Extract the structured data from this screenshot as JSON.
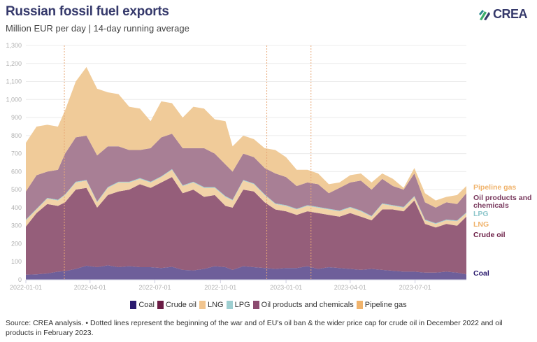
{
  "title": "Russian fossil fuel exports",
  "subtitle": "Million EUR per day | 14-day running average",
  "logo": {
    "text": "CREA",
    "icon": "crea-leaf-icon"
  },
  "source": "Source: CREA analysis. • Dotted lines represent the beginning of the war and of EU's oil ban & the wider price cap for crude oil in December 2022 and oil products in February 2023.",
  "chart_data": {
    "type": "area",
    "stacked": true,
    "title": "Russian fossil fuel exports",
    "ylabel": "Million EUR per day",
    "ylim": [
      0,
      1300
    ],
    "y_ticks": [
      0,
      100,
      200,
      300,
      400,
      500,
      600,
      700,
      800,
      900,
      1000,
      1100,
      1200,
      1300
    ],
    "x_range": [
      "2022-01-01",
      "2023-09-11"
    ],
    "x_ticks": [
      "2022-01-01",
      "2022-04-01",
      "2022-07-01",
      "2022-10-01",
      "2023-01-01",
      "2023-04-01",
      "2023-07-01"
    ],
    "grid": true,
    "legend_position": "bottom",
    "event_lines": [
      "2022-02-24",
      "2022-12-05",
      "2023-02-05"
    ],
    "x": [
      "2022-01-01",
      "2022-01-16",
      "2022-01-31",
      "2022-02-15",
      "2022-02-25",
      "2022-03-12",
      "2022-03-27",
      "2022-04-11",
      "2022-04-26",
      "2022-05-11",
      "2022-05-26",
      "2022-06-10",
      "2022-06-25",
      "2022-07-10",
      "2022-07-25",
      "2022-08-09",
      "2022-08-24",
      "2022-09-08",
      "2022-09-23",
      "2022-10-08",
      "2022-10-18",
      "2022-11-02",
      "2022-11-17",
      "2022-12-02",
      "2022-12-17",
      "2023-01-01",
      "2023-01-16",
      "2023-01-31",
      "2023-02-15",
      "2023-03-02",
      "2023-03-17",
      "2023-04-01",
      "2023-04-16",
      "2023-05-01",
      "2023-05-16",
      "2023-05-31",
      "2023-06-15",
      "2023-06-30",
      "2023-07-15",
      "2023-07-30",
      "2023-08-14",
      "2023-08-29",
      "2023-09-11"
    ],
    "series": [
      {
        "name": "Coal",
        "label": "Coal",
        "color": "#6e5f9a",
        "legend_color": "#2a1a6e",
        "label_color": "#2a1a6e",
        "values": [
          28,
          30,
          35,
          45,
          48,
          60,
          78,
          70,
          80,
          70,
          75,
          70,
          70,
          65,
          72,
          55,
          52,
          60,
          75,
          70,
          55,
          75,
          70,
          65,
          60,
          65,
          65,
          75,
          60,
          70,
          65,
          60,
          55,
          60,
          55,
          50,
          45,
          45,
          40,
          40,
          45,
          40,
          30
        ]
      },
      {
        "name": "Crude oil",
        "label": "Crude oil",
        "color": "#955e7a",
        "legend_color": "#6b1d45",
        "label_color": "#6b1d45",
        "values": [
          267,
          340,
          385,
          365,
          382,
          440,
          432,
          330,
          390,
          420,
          425,
          460,
          440,
          475,
          498,
          425,
          448,
          400,
          395,
          340,
          345,
          425,
          420,
          365,
          330,
          315,
          295,
          305,
          310,
          290,
          285,
          310,
          295,
          270,
          335,
          340,
          335,
          395,
          270,
          250,
          265,
          260,
          320
        ]
      },
      {
        "name": "LNG",
        "label": "LNG",
        "color": "#f2d3a8",
        "legend_color": "#f1c58f",
        "label_color": "#f0b36c",
        "values": [
          35,
          20,
          30,
          30,
          40,
          40,
          40,
          30,
          40,
          50,
          40,
          30,
          30,
          30,
          40,
          40,
          40,
          50,
          40,
          50,
          40,
          50,
          40,
          40,
          30,
          30,
          30,
          30,
          30,
          30,
          30,
          30,
          30,
          20,
          30,
          20,
          20,
          20,
          20,
          20,
          20,
          25,
          20
        ]
      },
      {
        "name": "LPG",
        "label": "LPG",
        "color": "#9fd0d3",
        "legend_color": "#9ecfd1",
        "label_color": "#8fc7cc",
        "values": [
          4,
          4,
          4,
          4,
          4,
          4,
          4,
          4,
          4,
          4,
          4,
          4,
          4,
          4,
          4,
          4,
          4,
          4,
          4,
          4,
          4,
          4,
          4,
          4,
          4,
          4,
          4,
          4,
          4,
          4,
          4,
          4,
          4,
          4,
          4,
          4,
          4,
          4,
          4,
          4,
          4,
          4,
          4
        ]
      },
      {
        "name": "Oil products and chemicals",
        "label": "Oil products and chemicals",
        "label_lines": [
          "Oil products and",
          "chemicals"
        ],
        "color": "#a87f95",
        "legend_color": "#8b4b6f",
        "label_color": "#7a3b5f",
        "values": [
          156,
          186,
          146,
          166,
          226,
          246,
          246,
          256,
          226,
          196,
          176,
          156,
          186,
          216,
          196,
          206,
          186,
          216,
          186,
          176,
          156,
          146,
          146,
          146,
          166,
          156,
          126,
          126,
          126,
          86,
          126,
          136,
          166,
          146,
          136,
          106,
          96,
          126,
          96,
          86,
          96,
          91,
          106
        ]
      },
      {
        "name": "Pipeline gas",
        "label": "Pipeline gas",
        "color": "#f0cb99",
        "legend_color": "#f0b36c",
        "label_color": "#f0b36c",
        "values": [
          270,
          270,
          260,
          240,
          240,
          310,
          380,
          370,
          300,
          290,
          240,
          230,
          150,
          200,
          170,
          170,
          230,
          220,
          190,
          240,
          140,
          100,
          100,
          110,
          130,
          110,
          90,
          70,
          60,
          50,
          30,
          40,
          40,
          40,
          30,
          40,
          10,
          30,
          50,
          40,
          30,
          50,
          40
        ]
      }
    ]
  }
}
